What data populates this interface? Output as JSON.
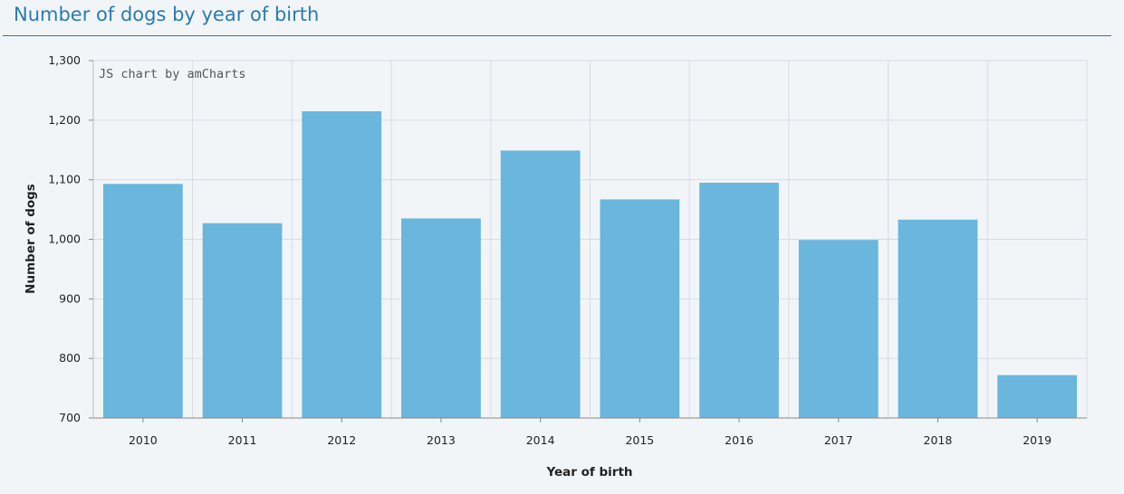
{
  "page": {
    "title": "Number of dogs by year of birth"
  },
  "chart_credit": "JS chart by amCharts",
  "colors": {
    "title": "#2a7bb0",
    "bar": "#6ab6dc",
    "grid": "#d6dce2",
    "background": "#f2f5f8"
  },
  "chart_data": {
    "type": "bar",
    "title": "",
    "xlabel": "Year of birth",
    "ylabel": "Number of dogs",
    "categories": [
      "2010",
      "2011",
      "2012",
      "2013",
      "2014",
      "2015",
      "2016",
      "2017",
      "2018",
      "2019"
    ],
    "values": [
      1093,
      1027,
      1215,
      1035,
      1149,
      1067,
      1095,
      999,
      1033,
      772
    ],
    "ylim": [
      700,
      1300
    ],
    "yticks": [
      700,
      800,
      900,
      1000,
      1100,
      1200,
      1300
    ],
    "ytick_labels": [
      "700",
      "800",
      "900",
      "1,000",
      "1,100",
      "1,200",
      "1,300"
    ],
    "grid": true,
    "legend": "none"
  }
}
